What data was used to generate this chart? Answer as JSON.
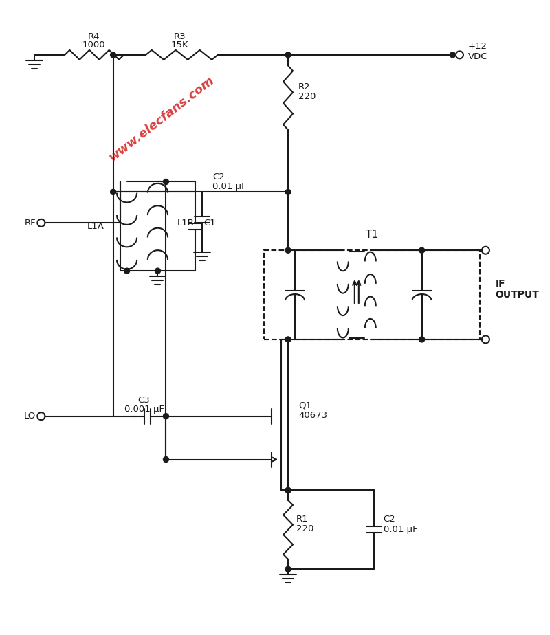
{
  "background": "#ffffff",
  "line_color": "#1a1a1a",
  "line_width": 1.5,
  "watermark_text": "www.elecfans.com",
  "watermark_color": "#cc0000",
  "components": {
    "R4": {
      "label": "R4",
      "value": "1000"
    },
    "R3": {
      "label": "R3",
      "value": "15K"
    },
    "R2": {
      "label": "R2",
      "value": "220"
    },
    "R1": {
      "label": "R1",
      "value": "220"
    },
    "C2_top": {
      "label": "C2",
      "value": "0.01 μF"
    },
    "C3": {
      "label": "C3",
      "value": "0.001 μF"
    },
    "C1": {
      "label": "C1"
    },
    "C2_bot": {
      "label": "C2",
      "value": "0.01 μF"
    },
    "Q1": {
      "label": "Q1",
      "value": "40673"
    },
    "T1": {
      "label": "T1"
    },
    "L1A": {
      "label": "L1A"
    },
    "L1B": {
      "label": "L1B"
    },
    "VDC": {
      "label": "+12\nVDC"
    },
    "IF": {
      "label": "IF\nOUTPUT"
    },
    "LO": {
      "label": "LO"
    },
    "RF": {
      "label": "RF"
    }
  }
}
